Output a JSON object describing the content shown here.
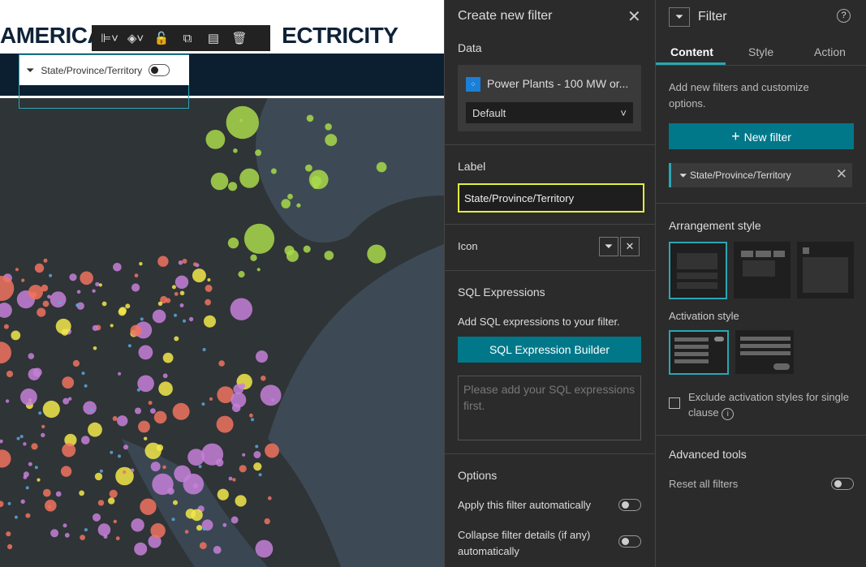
{
  "map": {
    "title_left": "AMERICA",
    "title_right": "ECTRICITY",
    "toolbar": [
      {
        "name": "align-icon",
        "glyph": "⊫˅"
      },
      {
        "name": "layers-icon",
        "glyph": "◈˅"
      },
      {
        "name": "unlock-icon",
        "glyph": "🔓"
      },
      {
        "name": "duplicate-icon",
        "glyph": "⧉"
      },
      {
        "name": "hide-icon",
        "glyph": "▤"
      },
      {
        "name": "delete-icon",
        "glyph": "🗑"
      }
    ],
    "widget_label": "State/Province/Territory",
    "colors": {
      "purple": "#c580d8",
      "salmon": "#f0735e",
      "yellow": "#f2e84a",
      "green": "#a8d94a",
      "blue": "#5aa8d8"
    }
  },
  "create": {
    "title": "Create new filter",
    "data_label": "Data",
    "layer": "Power Plants - 100 MW or...",
    "view": "Default",
    "label_heading": "Label",
    "label_value": "State/Province/Territory",
    "icon_label": "Icon",
    "sql_heading": "SQL Expressions",
    "sql_desc": "Add SQL expressions to your filter.",
    "sql_button": "SQL Expression Builder",
    "sql_placeholder": "Please add your SQL expressions first.",
    "options_heading": "Options",
    "opt1": "Apply this filter automatically",
    "opt2": "Collapse filter details (if any) automatically"
  },
  "filter": {
    "title": "Filter",
    "tabs": [
      "Content",
      "Style",
      "Action"
    ],
    "desc": "Add new filters and customize options.",
    "new_filter": "New filter",
    "item": "State/Province/Territory",
    "arrangement": "Arrangement style",
    "activation": "Activation style",
    "exclude": "Exclude activation styles for single clause",
    "advanced": "Advanced tools",
    "reset": "Reset all filters",
    "accent": "#2aa6b3"
  }
}
